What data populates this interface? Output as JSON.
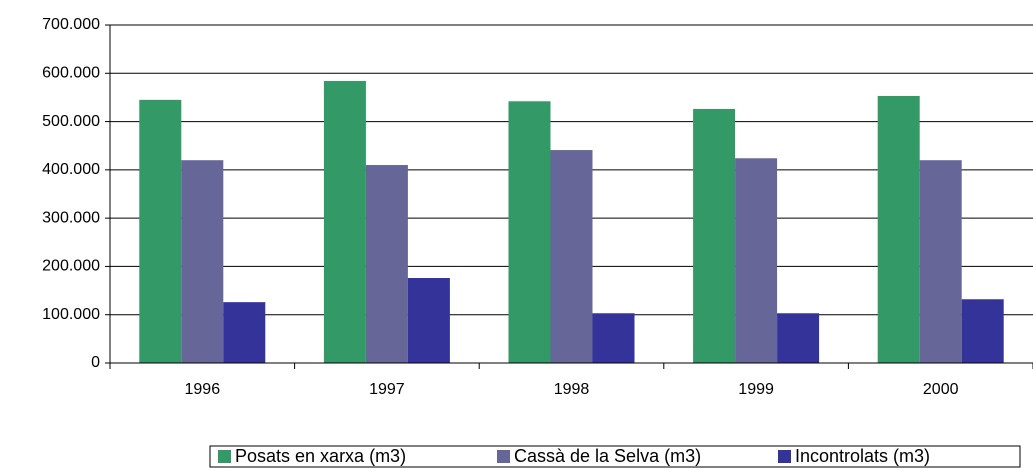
{
  "chart_data": {
    "type": "bar",
    "categories": [
      "1996",
      "1997",
      "1998",
      "1999",
      "2000"
    ],
    "series": [
      {
        "name": "Posats en xarxa (m3)",
        "color": "#339966",
        "values": [
          545000,
          584000,
          542000,
          526000,
          553000
        ]
      },
      {
        "name": "Cassà de la Selva (m3)",
        "color": "#666699",
        "values": [
          420000,
          410000,
          441000,
          424000,
          420000
        ]
      },
      {
        "name": "Incontrolats (m3)",
        "color": "#333399",
        "values": [
          126000,
          176000,
          103000,
          103000,
          132000
        ]
      }
    ],
    "ylim": [
      0,
      700000
    ],
    "yticks": [
      0,
      {
        "value": 100000,
        "label": "100.000"
      },
      {
        "value": 200000,
        "label": "200.000"
      },
      {
        "value": 300000,
        "label": "300.000"
      },
      {
        "value": 400000,
        "label": "400.000"
      },
      {
        "value": 500000,
        "label": "500.000"
      },
      {
        "value": 600000,
        "label": "600.000"
      },
      {
        "value": 700000,
        "label": "700.000"
      }
    ],
    "grid": true,
    "legend": "bottom-right"
  }
}
